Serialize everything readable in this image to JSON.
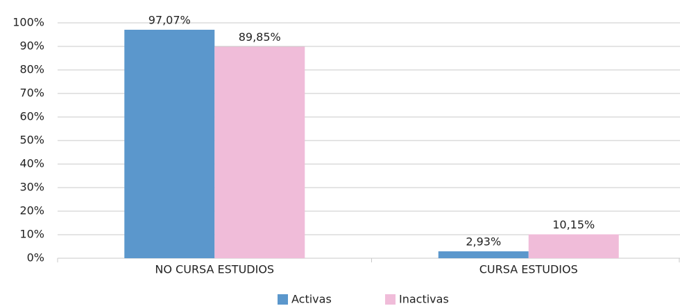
{
  "chart_data": {
    "type": "bar",
    "categories": [
      "NO CURSA ESTUDIOS",
      "CURSA ESTUDIOS"
    ],
    "series": [
      {
        "name": "Activas",
        "color": "#5b97cc",
        "values": [
          97.07,
          2.93
        ],
        "value_labels": [
          "97,07%",
          "2,93%"
        ]
      },
      {
        "name": "Inactivas",
        "color": "#f0bcd9",
        "values": [
          89.85,
          10.15
        ],
        "value_labels": [
          "89,85%",
          "10,15%"
        ]
      }
    ],
    "ylim": [
      0,
      100
    ],
    "yticks": [
      {
        "value": 0,
        "label": "0%"
      },
      {
        "value": 10,
        "label": "10%"
      },
      {
        "value": 20,
        "label": "20%"
      },
      {
        "value": 30,
        "label": "30%"
      },
      {
        "value": 40,
        "label": "40%"
      },
      {
        "value": 50,
        "label": "50%"
      },
      {
        "value": 60,
        "label": "60%"
      },
      {
        "value": 70,
        "label": "70%"
      },
      {
        "value": 80,
        "label": "80%"
      },
      {
        "value": 90,
        "label": "90%"
      },
      {
        "value": 100,
        "label": "100%"
      }
    ],
    "grid": true
  }
}
